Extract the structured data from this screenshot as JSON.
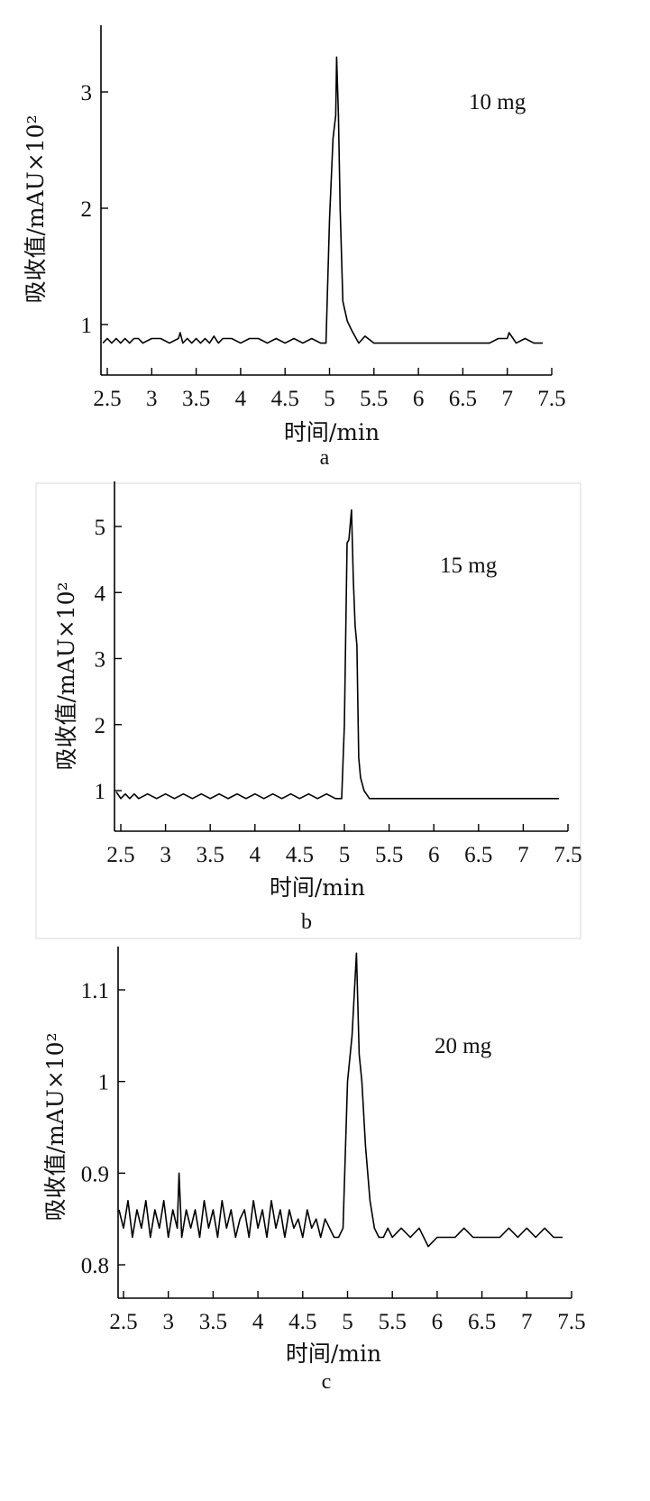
{
  "figure": {
    "panels": [
      {
        "letter": "a",
        "annotation": "10 mg",
        "xlabel": "时间/min",
        "ylabel": "吸收值/mAU×10²",
        "xticks": [
          "2.5",
          "3",
          "3.5",
          "4",
          "4.5",
          "5",
          "5.5",
          "6",
          "6.5",
          "7",
          "7.5"
        ],
        "yticks": [
          "1",
          "2",
          "3"
        ]
      },
      {
        "letter": "b",
        "annotation": "15 mg",
        "xlabel": "时间/min",
        "ylabel": "吸收值/mAU×10²",
        "xticks": [
          "2.5",
          "3",
          "3.5",
          "4",
          "4.5",
          "5",
          "5.5",
          "6",
          "6.5",
          "7",
          "7.5"
        ],
        "yticks": [
          "1",
          "2",
          "3",
          "4",
          "5"
        ]
      },
      {
        "letter": "c",
        "annotation": "20 mg",
        "xlabel": "时间/min",
        "ylabel": "吸收值/mAU×10²",
        "xticks": [
          "2.5",
          "3",
          "3.5",
          "4",
          "4.5",
          "5",
          "5.5",
          "6",
          "6.5",
          "7",
          "7.5"
        ],
        "yticks": [
          "0.8",
          "0.9",
          "1",
          "1.1"
        ]
      }
    ]
  },
  "chart_data": [
    {
      "type": "line",
      "xlabel": "时间/min",
      "ylabel": "吸收值/mAU×10²",
      "xlim": [
        2.45,
        7.5
      ],
      "ylim": [
        0.6,
        3.55
      ],
      "xticks": [
        2.5,
        3,
        3.5,
        4,
        4.5,
        5,
        5.5,
        6,
        6.5,
        7,
        7.5
      ],
      "yticks": [
        1,
        2,
        3
      ],
      "annotations": [
        "10 mg"
      ],
      "series": [
        {
          "style": "line",
          "x": [
            2.45,
            2.5,
            2.55,
            2.6,
            2.65,
            2.7,
            2.75,
            2.8,
            2.85,
            2.9,
            3.0,
            3.1,
            3.2,
            3.3,
            3.32,
            3.35,
            3.4,
            3.45,
            3.5,
            3.55,
            3.6,
            3.65,
            3.7,
            3.75,
            3.8,
            3.9,
            4.0,
            4.1,
            4.2,
            4.3,
            4.4,
            4.5,
            4.6,
            4.7,
            4.8,
            4.9,
            4.96,
            5.0,
            5.04,
            5.07,
            5.08,
            5.1,
            5.12,
            5.15,
            5.2,
            5.25,
            5.3,
            5.33,
            5.4,
            5.5,
            5.6,
            5.7,
            5.8,
            5.9,
            6.0,
            6.1,
            6.2,
            6.3,
            6.4,
            6.5,
            6.6,
            6.7,
            6.8,
            6.9,
            7.0,
            7.02,
            7.1,
            7.2,
            7.3,
            7.4
          ],
          "y": [
            0.84,
            0.88,
            0.84,
            0.88,
            0.84,
            0.88,
            0.84,
            0.88,
            0.88,
            0.84,
            0.88,
            0.88,
            0.84,
            0.88,
            0.93,
            0.84,
            0.88,
            0.84,
            0.88,
            0.84,
            0.88,
            0.84,
            0.9,
            0.84,
            0.88,
            0.88,
            0.84,
            0.88,
            0.88,
            0.84,
            0.88,
            0.84,
            0.88,
            0.84,
            0.88,
            0.84,
            0.84,
            1.9,
            2.6,
            2.8,
            3.3,
            2.8,
            2.0,
            1.2,
            1.03,
            0.95,
            0.88,
            0.84,
            0.9,
            0.84,
            0.84,
            0.84,
            0.84,
            0.84,
            0.84,
            0.84,
            0.84,
            0.84,
            0.84,
            0.84,
            0.84,
            0.84,
            0.84,
            0.88,
            0.88,
            0.93,
            0.84,
            0.88,
            0.84,
            0.84
          ]
        }
      ]
    },
    {
      "type": "line",
      "xlabel": "时间/min",
      "ylabel": "吸收值/mAU×10²",
      "xlim": [
        2.45,
        7.5
      ],
      "ylim": [
        0.55,
        5.75
      ],
      "xticks": [
        2.5,
        3,
        3.5,
        4,
        4.5,
        5,
        5.5,
        6,
        6.5,
        7,
        7.5
      ],
      "yticks": [
        1,
        2,
        3,
        4,
        5
      ],
      "annotations": [
        "15 mg"
      ],
      "series": [
        {
          "style": "line",
          "x": [
            2.45,
            2.5,
            2.55,
            2.6,
            2.65,
            2.7,
            2.8,
            2.9,
            3.0,
            3.1,
            3.2,
            3.3,
            3.4,
            3.5,
            3.6,
            3.7,
            3.8,
            3.9,
            4.0,
            4.1,
            4.2,
            4.3,
            4.4,
            4.5,
            4.6,
            4.7,
            4.8,
            4.9,
            4.97,
            5.0,
            5.03,
            5.05,
            5.08,
            5.1,
            5.12,
            5.14,
            5.16,
            5.18,
            5.22,
            5.28,
            6.0,
            7.0,
            7.4
          ],
          "y": [
            0.98,
            0.88,
            0.95,
            0.88,
            0.95,
            0.88,
            0.95,
            0.88,
            0.95,
            0.88,
            0.95,
            0.88,
            0.95,
            0.88,
            0.95,
            0.88,
            0.95,
            0.88,
            0.95,
            0.88,
            0.95,
            0.88,
            0.95,
            0.88,
            0.95,
            0.88,
            0.95,
            0.88,
            0.88,
            2.0,
            4.75,
            4.8,
            5.25,
            4.2,
            3.5,
            3.2,
            1.5,
            1.2,
            1.0,
            0.88,
            0.88,
            0.88,
            0.88
          ]
        }
      ]
    },
    {
      "type": "line",
      "xlabel": "时间/min",
      "ylabel": "吸收值/mAU×10²",
      "xlim": [
        2.45,
        7.5
      ],
      "ylim": [
        0.765,
        1.145
      ],
      "xticks": [
        2.5,
        3,
        3.5,
        4,
        4.5,
        5,
        5.5,
        6,
        6.5,
        7,
        7.5
      ],
      "yticks": [
        0.8,
        0.9,
        1,
        1.1
      ],
      "annotations": [
        "20 mg"
      ],
      "series": [
        {
          "style": "line",
          "x": [
            2.45,
            2.5,
            2.55,
            2.6,
            2.65,
            2.7,
            2.75,
            2.8,
            2.85,
            2.9,
            2.95,
            3.0,
            3.05,
            3.1,
            3.12,
            3.15,
            3.2,
            3.25,
            3.3,
            3.35,
            3.4,
            3.45,
            3.5,
            3.55,
            3.6,
            3.65,
            3.7,
            3.75,
            3.8,
            3.85,
            3.9,
            3.95,
            4.0,
            4.05,
            4.1,
            4.15,
            4.2,
            4.25,
            4.3,
            4.35,
            4.4,
            4.45,
            4.5,
            4.55,
            4.6,
            4.65,
            4.7,
            4.75,
            4.8,
            4.85,
            4.9,
            4.95,
            5.0,
            5.05,
            5.1,
            5.13,
            5.16,
            5.2,
            5.25,
            5.3,
            5.35,
            5.4,
            5.45,
            5.5,
            5.6,
            5.7,
            5.8,
            5.9,
            6.0,
            6.1,
            6.2,
            6.3,
            6.4,
            6.5,
            6.6,
            6.7,
            6.8,
            6.9,
            7.0,
            7.1,
            7.2,
            7.3,
            7.4
          ],
          "y": [
            0.86,
            0.84,
            0.87,
            0.83,
            0.86,
            0.84,
            0.87,
            0.83,
            0.86,
            0.84,
            0.87,
            0.83,
            0.86,
            0.84,
            0.9,
            0.83,
            0.86,
            0.84,
            0.86,
            0.83,
            0.87,
            0.84,
            0.86,
            0.83,
            0.87,
            0.84,
            0.86,
            0.83,
            0.85,
            0.86,
            0.83,
            0.87,
            0.84,
            0.86,
            0.83,
            0.87,
            0.84,
            0.86,
            0.83,
            0.86,
            0.84,
            0.85,
            0.83,
            0.86,
            0.84,
            0.85,
            0.83,
            0.85,
            0.84,
            0.83,
            0.83,
            0.84,
            1.0,
            1.05,
            1.14,
            1.03,
            1.0,
            0.93,
            0.87,
            0.84,
            0.83,
            0.83,
            0.84,
            0.83,
            0.84,
            0.83,
            0.84,
            0.82,
            0.83,
            0.83,
            0.83,
            0.84,
            0.83,
            0.83,
            0.83,
            0.83,
            0.84,
            0.83,
            0.84,
            0.83,
            0.84,
            0.83,
            0.83
          ]
        }
      ]
    }
  ]
}
